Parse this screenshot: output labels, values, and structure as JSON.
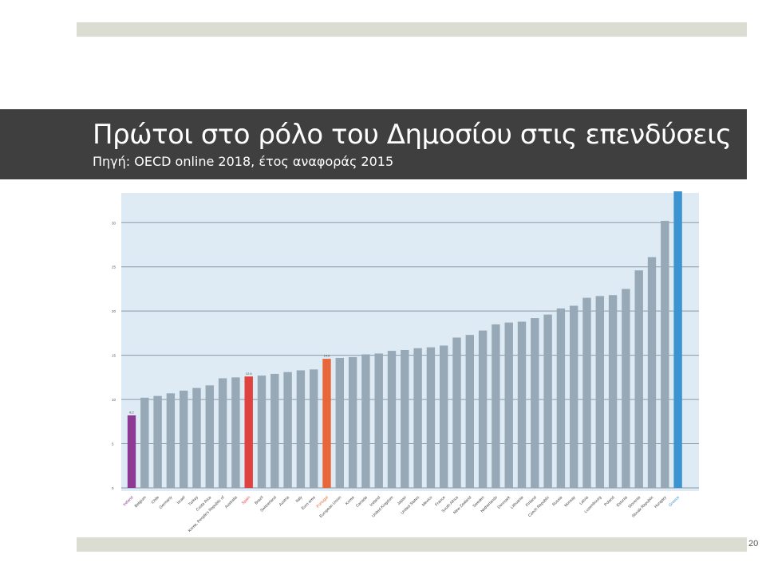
{
  "slide": {
    "title": "Πρώτοι στο ρόλο του Δημοσίου στις επενδύσεις",
    "subtitle": "Πηγή: OECD online 2018, έτος αναφοράς 2015",
    "page_number": "20"
  },
  "colors": {
    "band": "#dcddd2",
    "title_bar": "#3f3f3f",
    "plot_bg": "#deebf5",
    "default_bar": "#97a9b6",
    "ireland": "#8e3a94",
    "spain": "#e0423f",
    "portugal": "#e8673a",
    "greece": "#3b93cf"
  },
  "chart_data": {
    "type": "bar",
    "title": "",
    "xlabel": "",
    "ylabel": "",
    "ylim": [
      0,
      33
    ],
    "yticks": [
      0,
      5,
      10,
      15,
      20,
      25,
      30
    ],
    "grid": true,
    "categories": [
      "Ireland",
      "Belgium",
      "Chile",
      "Germany",
      "Israel",
      "Turkey",
      "Costa Rica",
      "Korea, People's Republic of",
      "Australia",
      "Spain",
      "Brazil",
      "Switzerland",
      "Austria",
      "Italy",
      "Euro area",
      "Portugal",
      "European Union",
      "Korea",
      "Canada",
      "Iceland",
      "United Kingdom",
      "Japan",
      "United States",
      "Mexico",
      "France",
      "South Africa",
      "New Zealand",
      "Sweden",
      "Netherlands",
      "Denmark",
      "Lithuania",
      "Finland",
      "Czech Republic",
      "Russia",
      "Norway",
      "Latvia",
      "Luxembourg",
      "Poland",
      "Estonia",
      "Slovenia",
      "Slovak Republic",
      "Hungary",
      "Greece"
    ],
    "values": [
      8.2,
      10.2,
      10.4,
      10.7,
      11.0,
      11.3,
      11.6,
      12.4,
      12.5,
      12.6,
      12.7,
      12.9,
      13.1,
      13.3,
      13.4,
      14.6,
      14.7,
      14.8,
      15.1,
      15.2,
      15.5,
      15.6,
      15.8,
      15.9,
      16.1,
      17.0,
      17.3,
      17.8,
      18.5,
      18.7,
      18.8,
      19.2,
      19.6,
      20.3,
      20.6,
      21.5,
      21.7,
      21.8,
      22.5,
      24.6,
      26.1,
      30.2,
      33.6
    ],
    "data_labels": {
      "0": "8.2",
      "9": "12.6",
      "15": "14.6",
      "42": "33.6"
    },
    "highlight": {
      "0": "ireland",
      "9": "spain",
      "15": "portugal",
      "42": "greece"
    }
  }
}
